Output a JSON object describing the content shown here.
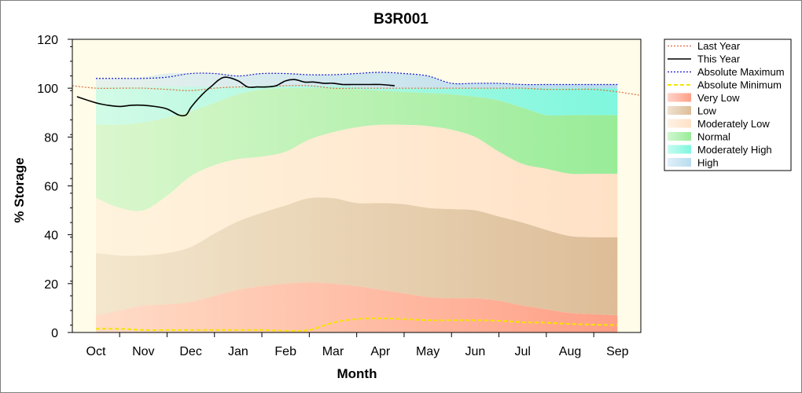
{
  "chart_data": {
    "type": "area",
    "title": "B3R001",
    "xlabel": "Month",
    "ylabel": "% Storage",
    "categories": [
      "Oct",
      "Nov",
      "Dec",
      "Jan",
      "Feb",
      "Mar",
      "Apr",
      "May",
      "Jun",
      "Jul",
      "Aug",
      "Sep"
    ],
    "ylim": [
      0,
      120
    ],
    "yticks": [
      0,
      20,
      40,
      60,
      80,
      100,
      120
    ],
    "grid": false,
    "legend_position": "right",
    "band_x": [
      0,
      0.5,
      1,
      1.5,
      2,
      2.5,
      3,
      3.5,
      4,
      4.5,
      5,
      5.5,
      6,
      6.5,
      7,
      7.5,
      8,
      8.5,
      9,
      9.5,
      10,
      10.5,
      11
    ],
    "bands": [
      {
        "name": "Very Low",
        "color": "#ff9f86",
        "lower": [
          0,
          0,
          0,
          0,
          0,
          0,
          0,
          0,
          0,
          0,
          0,
          0,
          0,
          0,
          0,
          0,
          0,
          0,
          0,
          0,
          0,
          0,
          0
        ],
        "upper": [
          7,
          9,
          11,
          11.5,
          12.5,
          15,
          17.5,
          19,
          20,
          20.5,
          20,
          19,
          17.5,
          16,
          14.5,
          14,
          14,
          13,
          11,
          9.5,
          8,
          7.5,
          7
        ]
      },
      {
        "name": "Low",
        "color": "#ddbd98",
        "lower": [
          7,
          9,
          11,
          11.5,
          12.5,
          15,
          17.5,
          19,
          20,
          20.5,
          20,
          19,
          17.5,
          16,
          14.5,
          14,
          14,
          13,
          11,
          9.5,
          8,
          7.5,
          7
        ],
        "upper": [
          32.5,
          31.5,
          31.5,
          32.5,
          35,
          40.5,
          45.5,
          49,
          52,
          55,
          55,
          53,
          53,
          52.5,
          51,
          50.5,
          50,
          47.5,
          45,
          42,
          39.5,
          39,
          39
        ]
      },
      {
        "name": "Moderately Low",
        "color": "#ffe1c6",
        "lower": [
          32.5,
          31.5,
          31.5,
          32.5,
          35,
          40.5,
          45.5,
          49,
          52,
          55,
          55,
          53,
          53,
          52.5,
          51,
          50.5,
          50,
          47.5,
          45,
          42,
          39.5,
          39,
          39
        ],
        "upper": [
          55,
          51,
          50,
          56,
          64,
          68.5,
          71,
          72,
          74,
          79,
          82,
          84,
          85,
          85,
          84.5,
          83,
          80,
          74,
          69,
          67,
          65,
          65,
          65
        ]
      },
      {
        "name": "Normal",
        "color": "#98ec98",
        "lower": [
          55,
          51,
          50,
          56,
          64,
          68.5,
          71,
          72,
          74,
          79,
          82,
          84,
          85,
          85,
          84.5,
          83,
          80,
          74,
          69,
          67,
          65,
          65,
          65
        ],
        "upper": [
          85,
          85,
          86,
          88,
          90.5,
          94,
          97.5,
          99.5,
          100,
          100,
          100,
          99.5,
          99,
          98.5,
          98,
          97.5,
          96.5,
          95,
          92,
          89,
          89,
          89,
          89
        ]
      },
      {
        "name": "Moderately High",
        "color": "#7ff7de",
        "lower": [
          85,
          85,
          86,
          88,
          90.5,
          94,
          97.5,
          99.5,
          100,
          100,
          100,
          99.5,
          99,
          98.5,
          98,
          97.5,
          96.5,
          95,
          92,
          89,
          89,
          89,
          89
        ],
        "upper": [
          100.5,
          100.5,
          100.5,
          100.5,
          100.5,
          100.5,
          100.5,
          101,
          101,
          101,
          101,
          100.5,
          100,
          100,
          100,
          100,
          100,
          100,
          100,
          100,
          100,
          100,
          100
        ]
      },
      {
        "name": "High",
        "color": "#b9dcf0",
        "lower": [
          100.5,
          100.5,
          100.5,
          100.5,
          100.5,
          100.5,
          100.5,
          101,
          101,
          101,
          101,
          100.5,
          100,
          100,
          100,
          100,
          100,
          100,
          100,
          100,
          100,
          100,
          100
        ],
        "upper": [
          104,
          104,
          104.5,
          106,
          106,
          106,
          105,
          106,
          106,
          105.5,
          105.5,
          106,
          106.5,
          106,
          105,
          102,
          102,
          102,
          101.5,
          101.5,
          101.5,
          101.5,
          101.5
        ]
      }
    ],
    "series": [
      {
        "name": "Last Year",
        "color": "#e06a3a",
        "style": "dotted",
        "x": [
          -0.5,
          0,
          0.5,
          1,
          1.5,
          2,
          2.5,
          3,
          3.5,
          4,
          4.5,
          5,
          5.5,
          6,
          6.5,
          7,
          7.5,
          8,
          8.5,
          9,
          9.5,
          10,
          10.5,
          11,
          11.5
        ],
        "y": [
          101,
          100,
          100,
          100,
          99.5,
          99,
          100,
          100.5,
          100.5,
          101,
          101,
          100,
          100,
          100,
          100,
          100,
          100,
          100,
          100,
          100,
          99.5,
          99.5,
          99.5,
          98.5,
          97
        ]
      },
      {
        "name": "This Year",
        "color": "#000000",
        "style": "solid",
        "x": [
          -0.4,
          0,
          0.25,
          0.5,
          0.75,
          1,
          1.25,
          1.5,
          1.75,
          1.9,
          2,
          2.15,
          2.3,
          2.45,
          2.6,
          2.75,
          3,
          3.2,
          3.4,
          3.6,
          3.8,
          4,
          4.2,
          4.4,
          4.6,
          4.8,
          5,
          5.2,
          5.4,
          5.6,
          5.8,
          6,
          6.3
        ],
        "y": [
          96.5,
          94,
          93,
          92.5,
          93,
          93,
          92.5,
          91.5,
          89,
          89,
          92,
          95.5,
          98.5,
          101,
          103.5,
          104.5,
          103,
          100.5,
          100.5,
          100.5,
          101,
          103,
          103.5,
          102.5,
          102.5,
          102,
          102,
          101.5,
          101.5,
          101.5,
          101.5,
          101.5,
          101
        ]
      },
      {
        "name": "Absolute Maximum",
        "color": "#1a1acd",
        "style": "dotted",
        "x": [
          0,
          0.5,
          1,
          1.5,
          2,
          2.5,
          3,
          3.5,
          4,
          4.5,
          5,
          5.5,
          6,
          6.5,
          7,
          7.5,
          8,
          8.5,
          9,
          9.5,
          10,
          10.5,
          11
        ],
        "y": [
          104,
          104,
          104,
          104.5,
          106,
          106,
          105,
          106,
          106,
          105.5,
          105.5,
          106,
          106.5,
          106,
          105,
          102,
          102,
          102,
          101.5,
          101.5,
          101.5,
          101.5,
          101.5
        ]
      },
      {
        "name": "Absolute Minimum",
        "color": "#f3e500",
        "style": "dashed",
        "x": [
          0,
          0.5,
          1,
          1.5,
          2,
          2.5,
          3,
          3.5,
          4,
          4.5,
          5,
          5.5,
          6,
          6.5,
          7,
          7.5,
          8,
          8.5,
          9,
          9.5,
          10,
          10.5,
          11
        ],
        "y": [
          1.5,
          1.5,
          1,
          1,
          1,
          1,
          1,
          1,
          0.7,
          1,
          4,
          5.5,
          5.8,
          5.5,
          5,
          5,
          5,
          4.8,
          4.2,
          4,
          3.5,
          3.2,
          3
        ]
      }
    ],
    "legend": [
      {
        "label": "Last Year",
        "kind": "line",
        "color": "#e06a3a",
        "style": "dotted"
      },
      {
        "label": "This Year",
        "kind": "line",
        "color": "#000000",
        "style": "solid"
      },
      {
        "label": "Absolute Maximum",
        "kind": "line",
        "color": "#1a1acd",
        "style": "dotted"
      },
      {
        "label": "Absolute Minimum",
        "kind": "line",
        "color": "#f3e500",
        "style": "dashed"
      },
      {
        "label": "Very Low",
        "kind": "area",
        "color": "#ff9f86"
      },
      {
        "label": "Low",
        "kind": "area",
        "color": "#ddbd98"
      },
      {
        "label": "Moderately Low",
        "kind": "area",
        "color": "#ffe1c6"
      },
      {
        "label": "Normal",
        "kind": "area",
        "color": "#98ec98"
      },
      {
        "label": "Moderately High",
        "kind": "area",
        "color": "#7ff7de"
      },
      {
        "label": "High",
        "kind": "area",
        "color": "#b9dcf0"
      }
    ],
    "plot_background": "#fffdea"
  }
}
